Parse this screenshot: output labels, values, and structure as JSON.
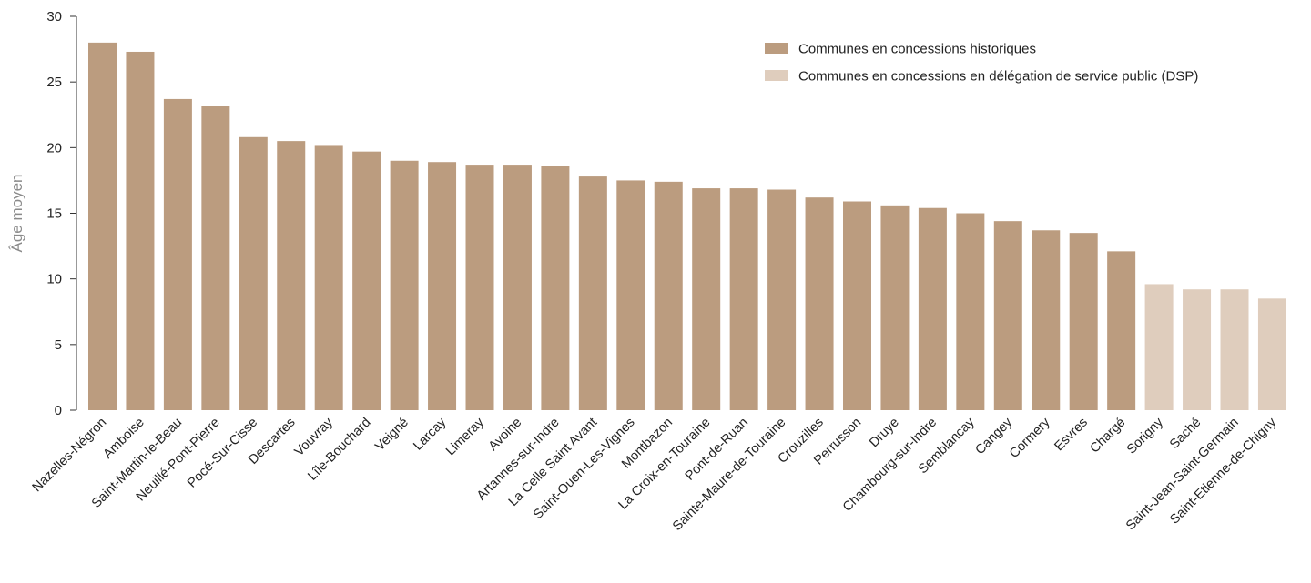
{
  "chart_data": {
    "type": "bar",
    "title": "",
    "xlabel": "",
    "ylabel": "Âge moyen",
    "ylim": [
      0,
      30
    ],
    "yticks": [
      0,
      5,
      10,
      15,
      20,
      25,
      30
    ],
    "grid": false,
    "legend_position": "top-right",
    "categories": [
      "Nazelles-Négron",
      "Amboise",
      "Saint-Martin-le-Beau",
      "Neuillé-Pont-Pierre",
      "Pocé-Sur-Cisse",
      "Descartes",
      "Vouvray",
      "Lîle-Bouchard",
      "Veigné",
      "Larcay",
      "Limeray",
      "Avoine",
      "Artannes-sur-Indre",
      "La Celle Saint Avant",
      "Saint-Ouen-Les-Vignes",
      "Montbazon",
      "La Croix-en-Touraine",
      "Pont-de-Ruan",
      "Sainte-Maure-de-Touraine",
      "Crouzilles",
      "Perrusson",
      "Druye",
      "Chambourg-sur-Indre",
      "Semblancay",
      "Cangey",
      "Cormery",
      "Esvres",
      "Chargé",
      "Sorigny",
      "Saché",
      "Saint-Jean-Saint-Germain",
      "Saint-Etienne-de-Chigny"
    ],
    "values": [
      28.0,
      27.3,
      23.7,
      23.2,
      20.8,
      20.5,
      20.2,
      19.7,
      19.0,
      18.9,
      18.7,
      18.7,
      18.6,
      17.8,
      17.5,
      17.4,
      16.9,
      16.9,
      16.8,
      16.2,
      15.9,
      15.6,
      15.4,
      15.0,
      14.4,
      13.7,
      13.5,
      12.1,
      9.6,
      9.2,
      9.2,
      8.5
    ],
    "groups": [
      0,
      0,
      0,
      0,
      0,
      0,
      0,
      0,
      0,
      0,
      0,
      0,
      0,
      0,
      0,
      0,
      0,
      0,
      0,
      0,
      0,
      0,
      0,
      0,
      0,
      0,
      0,
      0,
      1,
      1,
      1,
      1
    ],
    "series": [
      {
        "name": "Communes en concessions historiques",
        "color": "#bb9c7f"
      },
      {
        "name": "Communes en concessions en délégation de service public (DSP)",
        "color": "#dfcdbd"
      }
    ],
    "axis_color": "#333333"
  }
}
